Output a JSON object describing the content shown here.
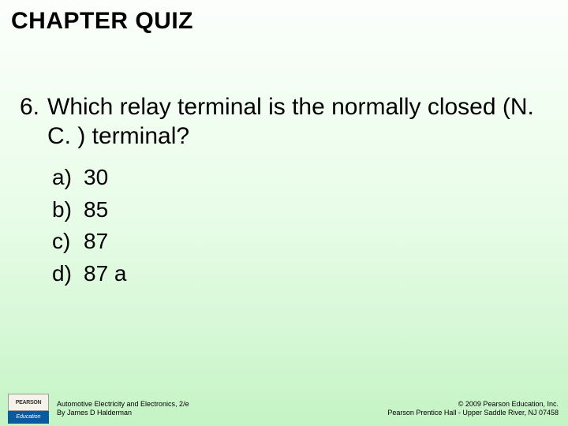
{
  "title": "CHAPTER QUIZ",
  "question": {
    "number": "6.",
    "text": "Which relay terminal is the normally closed (N. C. ) terminal?"
  },
  "options": [
    {
      "letter": "a)",
      "text": "30"
    },
    {
      "letter": "b)",
      "text": "85"
    },
    {
      "letter": "c)",
      "text": "87"
    },
    {
      "letter": "d)",
      "text": "87 a"
    }
  ],
  "logo": {
    "top": "PEARSON",
    "bottom": "Education"
  },
  "footer_left": {
    "line1": "Automotive Electricity and Electronics, 2/e",
    "line2": "By James D Halderman"
  },
  "footer_right": {
    "line1": "© 2009 Pearson Education, Inc.",
    "line2": "Pearson Prentice Hall - Upper Saddle River, NJ 07458"
  },
  "style": {
    "title_fontsize": 30,
    "question_fontsize": 30,
    "option_fontsize": 28,
    "footer_fontsize": 9,
    "bg_gradient_top": "#fcfefc",
    "bg_gradient_bottom": "#c4f4c4",
    "text_color": "#000000",
    "logo_blue": "#0a5aa0",
    "logo_cream": "#f5f2ea"
  }
}
